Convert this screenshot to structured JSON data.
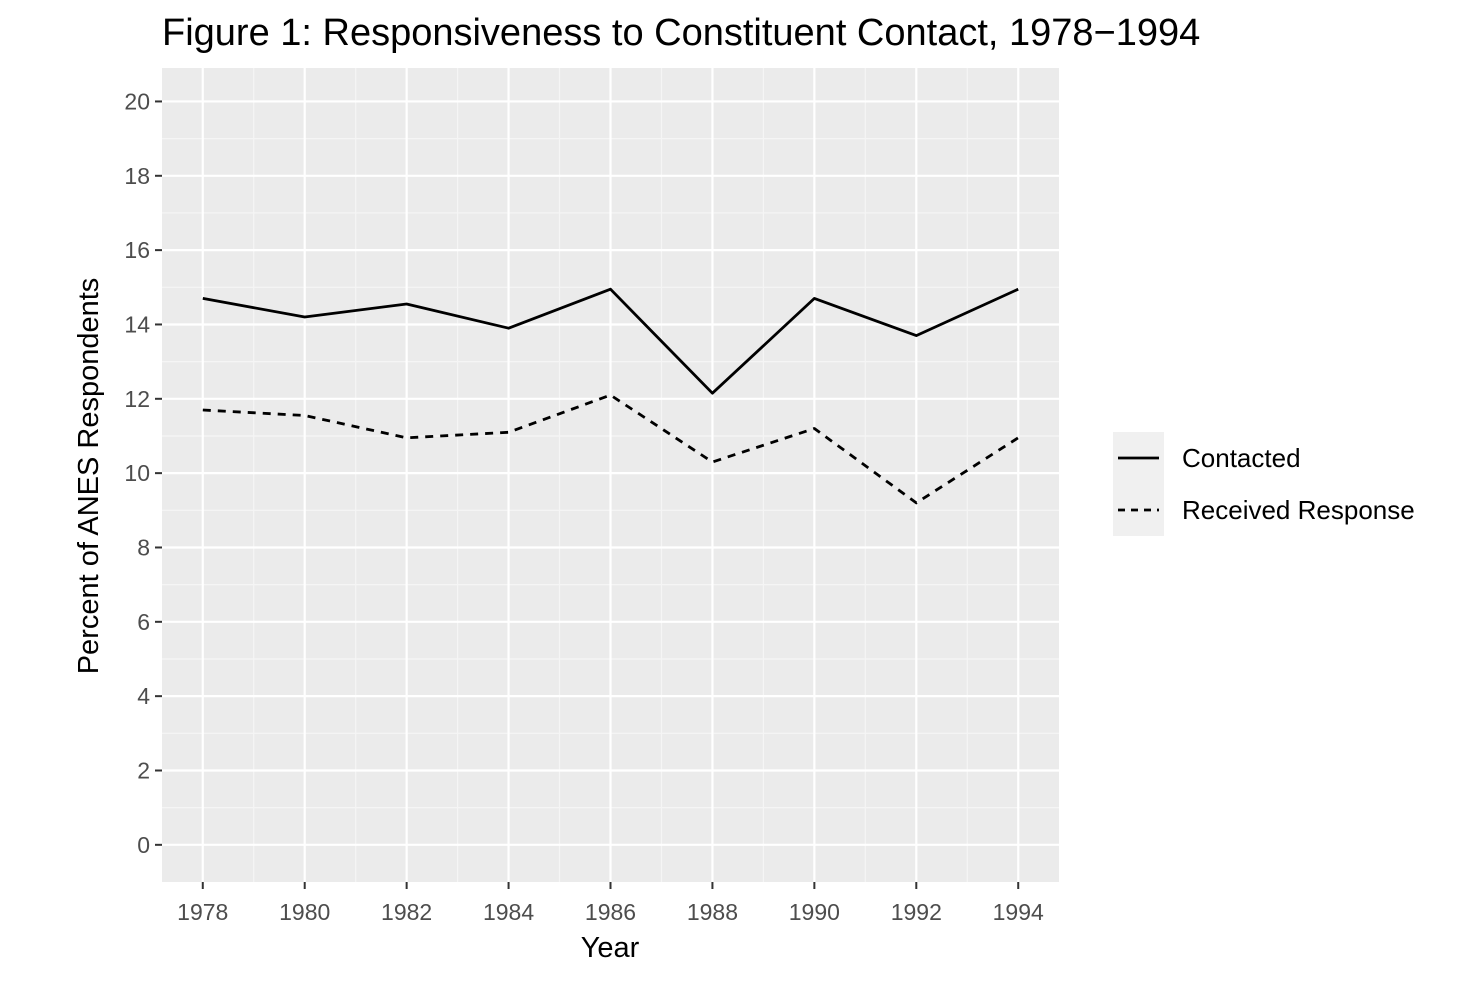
{
  "chart_data": {
    "type": "line",
    "title": "Figure 1: Responsiveness to Constituent Contact, 1978−1994",
    "xlabel": "Year",
    "ylabel": "Percent of ANES Respondents",
    "x": [
      1978,
      1980,
      1982,
      1984,
      1986,
      1988,
      1990,
      1992,
      1994
    ],
    "x_tick_labels": [
      "1978",
      "1980",
      "1982",
      "1984",
      "1986",
      "1988",
      "1990",
      "1992",
      "1994"
    ],
    "y_tick_labels": [
      "0",
      "2",
      "4",
      "6",
      "8",
      "10",
      "12",
      "14",
      "16",
      "18",
      "20"
    ],
    "xlim": [
      1977.2,
      1994.8
    ],
    "ylim": [
      -1,
      20.9
    ],
    "grid": true,
    "legend_position": "right",
    "series": [
      {
        "name": "Contacted",
        "line_style": "solid",
        "color": "#000000",
        "values": [
          14.7,
          14.2,
          14.55,
          13.9,
          14.95,
          12.15,
          14.7,
          13.7,
          14.95
        ]
      },
      {
        "name": "Received Response",
        "line_style": "dashed",
        "color": "#000000",
        "values": [
          11.7,
          11.55,
          10.95,
          11.1,
          12.1,
          10.3,
          11.2,
          9.2,
          10.95
        ]
      }
    ],
    "colors": {
      "panel_background": "#ebebeb",
      "grid_major": "#ffffff",
      "grid_minor": "#f5f5f5",
      "tick_text": "#4d4d4d",
      "legend_key_background": "#f0f0f0"
    }
  }
}
